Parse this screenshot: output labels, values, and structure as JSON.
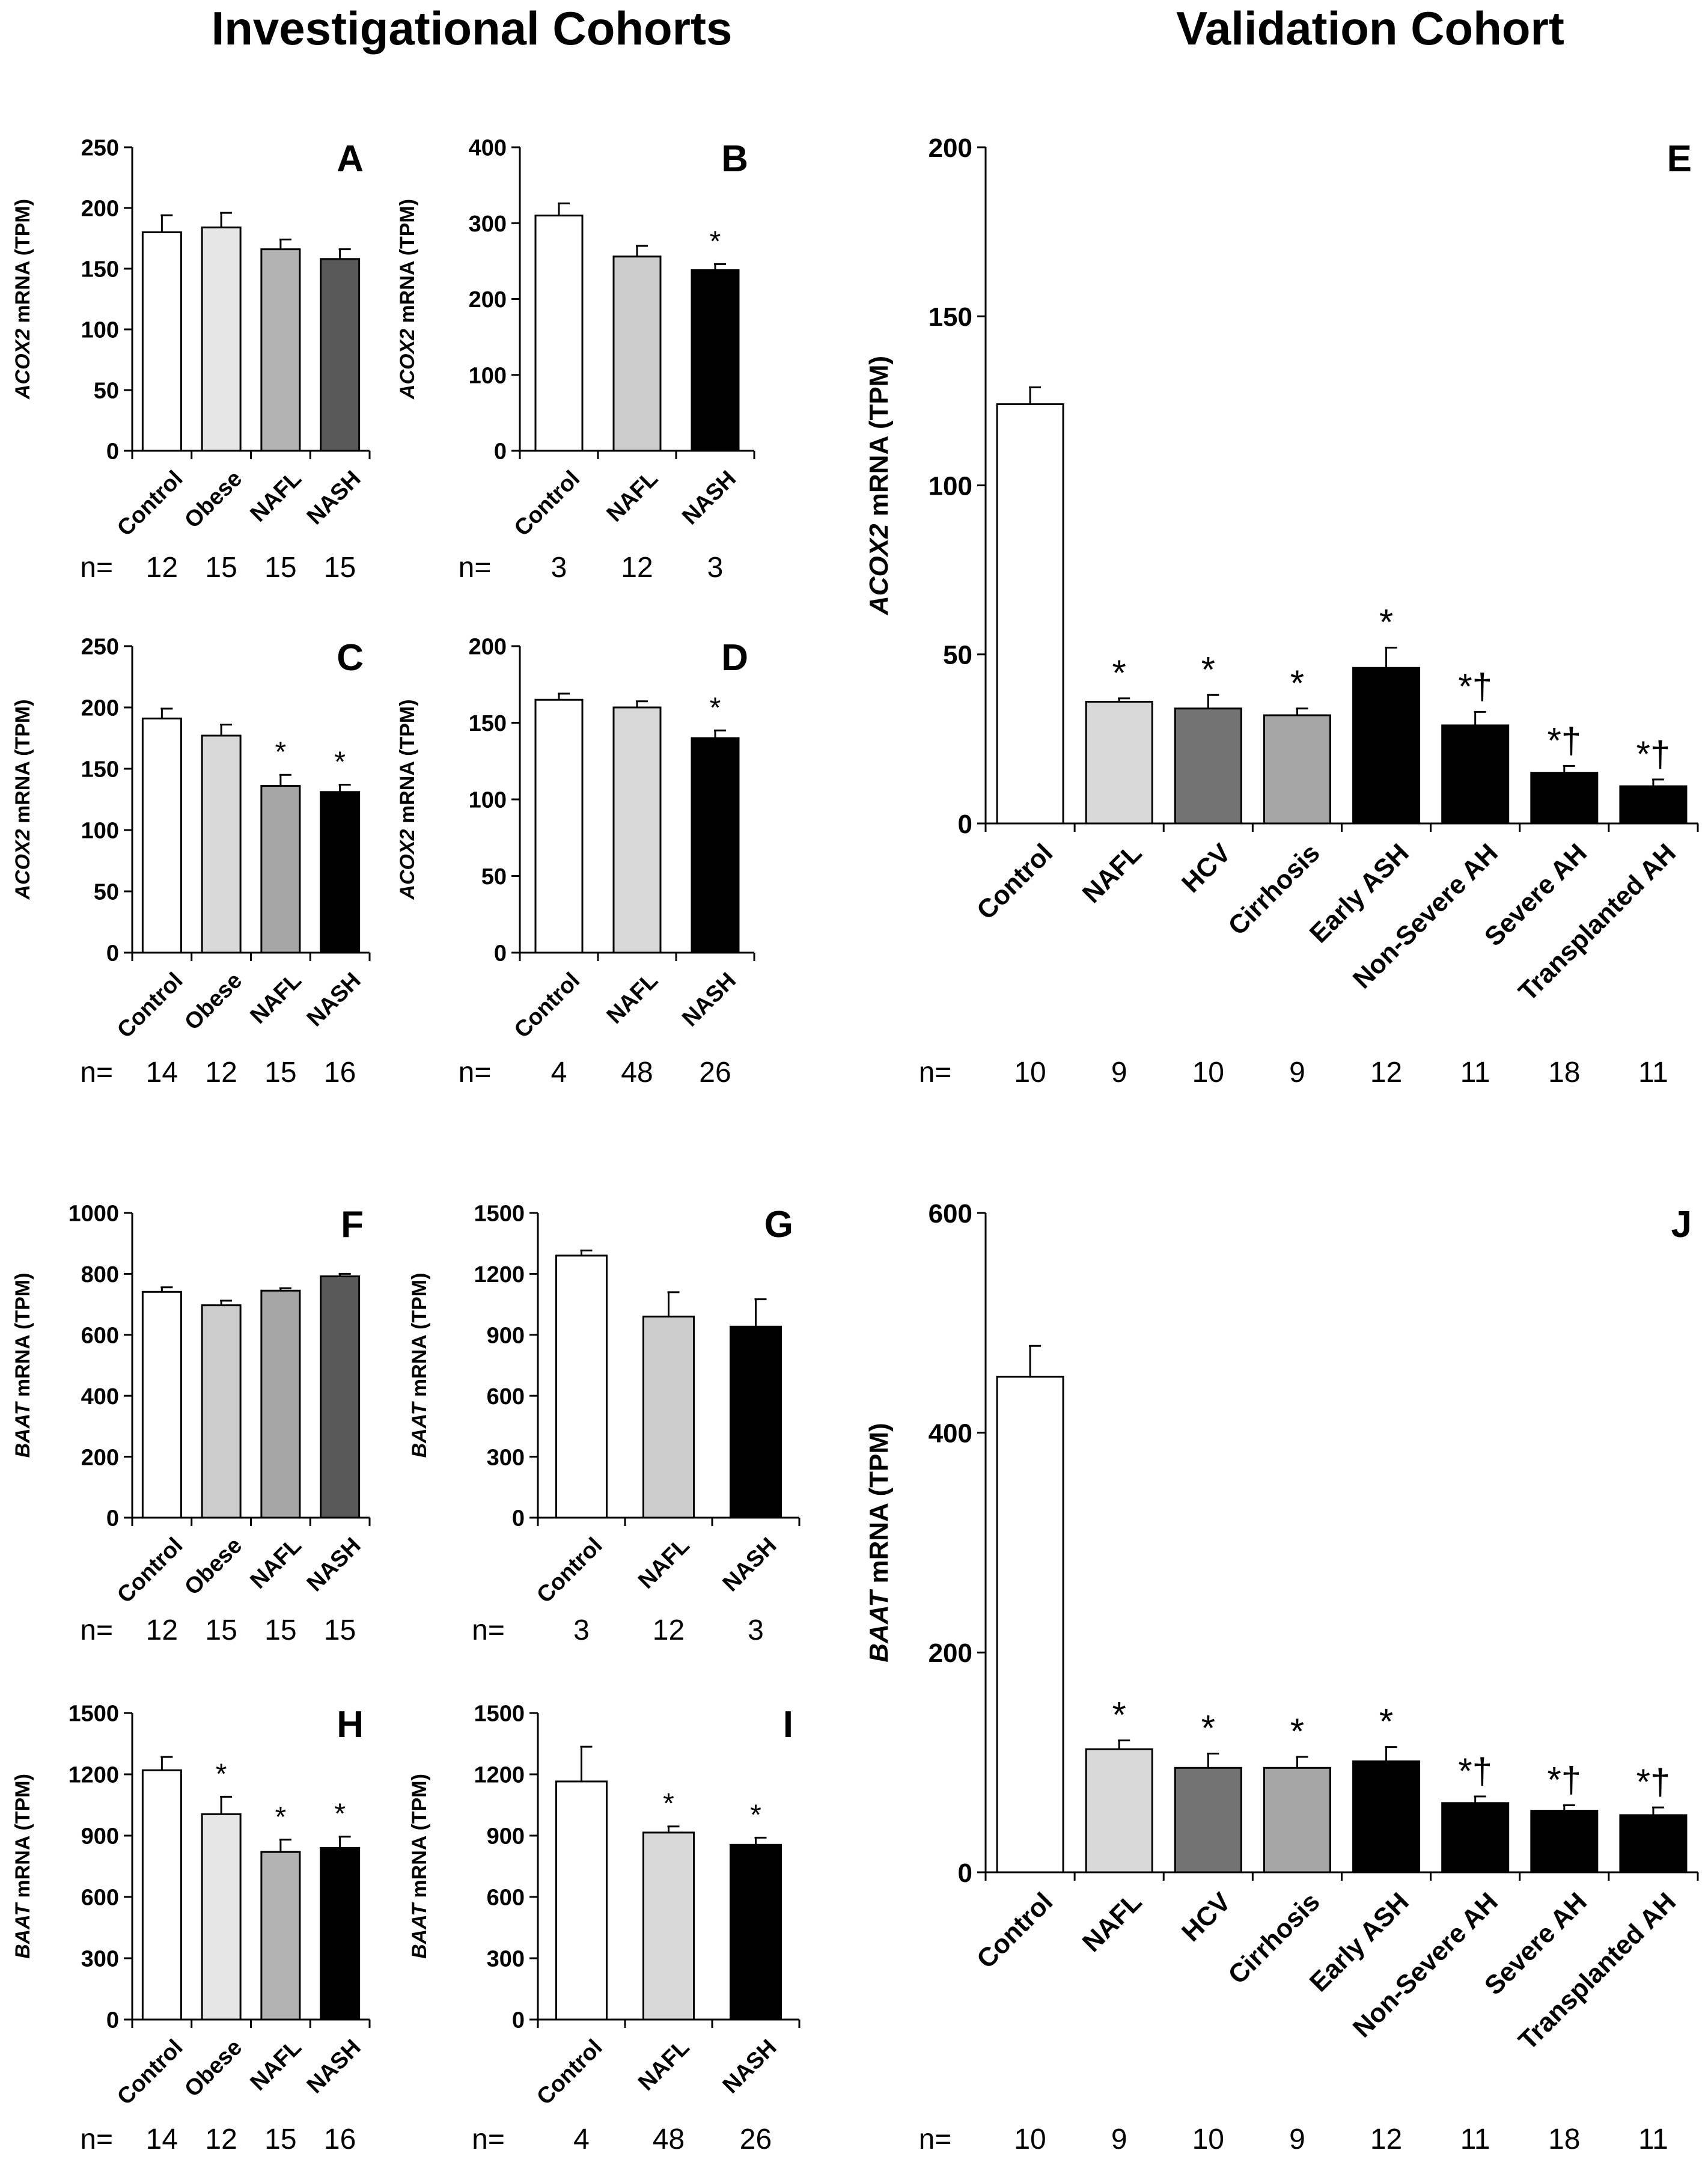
{
  "headings": {
    "left": "Investigational Cohorts",
    "right": "Validation Cohort"
  },
  "n_prefix": "n=",
  "chart_data": [
    {
      "type": "bar",
      "letter": "A",
      "ylabel_gene": "ACOX2",
      "ylabel_rest": " mRNA (TPM)",
      "ylim": [
        0,
        250
      ],
      "ticks": [
        0,
        50,
        100,
        150,
        200,
        250
      ],
      "categories": [
        "Control",
        "Obese",
        "NAFL",
        "NASH"
      ],
      "values": [
        180,
        184,
        166,
        158
      ],
      "errors": [
        14,
        12,
        8,
        8
      ],
      "colors": [
        "#ffffff",
        "#e6e6e6",
        "#b3b3b3",
        "#595959"
      ],
      "sig": [
        "",
        "",
        "",
        ""
      ],
      "n": [
        "12",
        "15",
        "15",
        "15"
      ]
    },
    {
      "type": "bar",
      "letter": "B",
      "ylabel_gene": "ACOX2",
      "ylabel_rest": " mRNA (TPM)",
      "ylim": [
        0,
        400
      ],
      "ticks": [
        0,
        100,
        200,
        300,
        400
      ],
      "categories": [
        "Control",
        "NAFL",
        "NASH"
      ],
      "values": [
        310,
        256,
        238
      ],
      "errors": [
        16,
        14,
        8
      ],
      "colors": [
        "#ffffff",
        "#cccccc",
        "#000000"
      ],
      "sig": [
        "",
        "",
        "*"
      ],
      "n": [
        "3",
        "12",
        "3"
      ]
    },
    {
      "type": "bar",
      "letter": "C",
      "ylabel_gene": "ACOX2",
      "ylabel_rest": " mRNA (TPM)",
      "ylim": [
        0,
        250
      ],
      "ticks": [
        0,
        50,
        100,
        150,
        200,
        250
      ],
      "categories": [
        "Control",
        "Obese",
        "NAFL",
        "NASH"
      ],
      "values": [
        191,
        177,
        136,
        131
      ],
      "errors": [
        8,
        9,
        9,
        6
      ],
      "colors": [
        "#ffffff",
        "#d9d9d9",
        "#a6a6a6",
        "#000000"
      ],
      "sig": [
        "",
        "",
        "*",
        "*"
      ],
      "n": [
        "14",
        "12",
        "15",
        "16"
      ]
    },
    {
      "type": "bar",
      "letter": "D",
      "ylabel_gene": "ACOX2",
      "ylabel_rest": " mRNA (TPM)",
      "ylim": [
        0,
        200
      ],
      "ticks": [
        0,
        50,
        100,
        150,
        200
      ],
      "categories": [
        "Control",
        "NAFL",
        "NASH"
      ],
      "values": [
        165,
        160,
        140
      ],
      "errors": [
        4,
        4,
        5
      ],
      "colors": [
        "#ffffff",
        "#d9d9d9",
        "#000000"
      ],
      "sig": [
        "",
        "",
        "*"
      ],
      "n": [
        "4",
        "48",
        "26"
      ]
    },
    {
      "type": "bar",
      "letter": "E",
      "ylabel_gene": "ACOX2",
      "ylabel_rest": " mRNA (TPM)",
      "ylim": [
        0,
        200
      ],
      "ticks": [
        0,
        50,
        100,
        150,
        200
      ],
      "categories": [
        "Control",
        "NAFL",
        "HCV",
        "Cirrhosis",
        "Early ASH",
        "Non-Severe AH",
        "Severe AH",
        "Transplanted AH"
      ],
      "values": [
        124,
        36,
        34,
        32,
        46,
        29,
        15,
        11
      ],
      "errors": [
        5,
        1,
        4,
        2,
        6,
        4,
        2,
        2
      ],
      "colors": [
        "#ffffff",
        "#d9d9d9",
        "#737373",
        "#a6a6a6",
        "#000000",
        "#000000",
        "#000000",
        "#000000"
      ],
      "sig": [
        "",
        "*",
        "*",
        "*",
        "*",
        "*†",
        "*†",
        "*†"
      ],
      "n": [
        "10",
        "9",
        "10",
        "9",
        "12",
        "11",
        "18",
        "11"
      ]
    },
    {
      "type": "bar",
      "letter": "F",
      "ylabel_gene": "BAAT",
      "ylabel_rest": " mRNA (TPM)",
      "ylim": [
        0,
        1000
      ],
      "ticks": [
        0,
        200,
        400,
        600,
        800,
        1000
      ],
      "categories": [
        "Control",
        "Obese",
        "NAFL",
        "NASH"
      ],
      "values": [
        741,
        697,
        745,
        792
      ],
      "errors": [
        15,
        15,
        8,
        8
      ],
      "colors": [
        "#ffffff",
        "#cccccc",
        "#a6a6a6",
        "#595959"
      ],
      "sig": [
        "",
        "",
        "",
        ""
      ],
      "n": [
        "12",
        "15",
        "15",
        "15"
      ]
    },
    {
      "type": "bar",
      "letter": "G",
      "ylabel_gene": "BAAT",
      "ylabel_rest": " mRNA (TPM)",
      "ylim": [
        0,
        1500
      ],
      "ticks": [
        0,
        300,
        600,
        900,
        1200,
        1500
      ],
      "categories": [
        "Control",
        "NAFL",
        "NASH"
      ],
      "values": [
        1290,
        990,
        940
      ],
      "errors": [
        25,
        120,
        135
      ],
      "colors": [
        "#ffffff",
        "#cccccc",
        "#000000"
      ],
      "sig": [
        "",
        "",
        ""
      ],
      "n": [
        "3",
        "12",
        "3"
      ]
    },
    {
      "type": "bar",
      "letter": "H",
      "ylabel_gene": "BAAT",
      "ylabel_rest": " mRNA (TPM)",
      "ylim": [
        0,
        1500
      ],
      "ticks": [
        0,
        300,
        600,
        900,
        1200,
        1500
      ],
      "categories": [
        "Control",
        "Obese",
        "NAFL",
        "NASH"
      ],
      "values": [
        1220,
        1005,
        820,
        840
      ],
      "errors": [
        65,
        85,
        60,
        55
      ],
      "colors": [
        "#ffffff",
        "#e6e6e6",
        "#b3b3b3",
        "#000000"
      ],
      "sig": [
        "",
        "*",
        "*",
        "*"
      ],
      "n": [
        "14",
        "12",
        "15",
        "16"
      ]
    },
    {
      "type": "bar",
      "letter": "I",
      "ylabel_gene": "BAAT",
      "ylabel_rest": " mRNA (TPM)",
      "ylim": [
        0,
        1500
      ],
      "ticks": [
        0,
        300,
        600,
        900,
        1200,
        1500
      ],
      "categories": [
        "Control",
        "NAFL",
        "NASH"
      ],
      "values": [
        1165,
        915,
        855
      ],
      "errors": [
        170,
        30,
        35
      ],
      "colors": [
        "#ffffff",
        "#d9d9d9",
        "#000000"
      ],
      "sig": [
        "",
        "*",
        "*"
      ],
      "n": [
        "4",
        "48",
        "26"
      ]
    },
    {
      "type": "bar",
      "letter": "J",
      "ylabel_gene": "BAAT",
      "ylabel_rest": " mRNA (TPM)",
      "ylim": [
        0,
        600
      ],
      "ticks": [
        0,
        200,
        400,
        600
      ],
      "categories": [
        "Control",
        "NAFL",
        "HCV",
        "Cirrhosis",
        "Early ASH",
        "Non-Severe AH",
        "Severe AH",
        "Transplanted AH"
      ],
      "values": [
        451,
        112,
        95,
        95,
        101,
        63,
        56,
        52
      ],
      "errors": [
        28,
        8,
        13,
        10,
        13,
        6,
        5,
        7
      ],
      "colors": [
        "#ffffff",
        "#d9d9d9",
        "#737373",
        "#a6a6a6",
        "#000000",
        "#000000",
        "#000000",
        "#000000"
      ],
      "sig": [
        "",
        "*",
        "*",
        "*",
        "*",
        "*†",
        "*†",
        "*†"
      ],
      "n": [
        "10",
        "9",
        "10",
        "9",
        "12",
        "11",
        "18",
        "11"
      ]
    }
  ]
}
